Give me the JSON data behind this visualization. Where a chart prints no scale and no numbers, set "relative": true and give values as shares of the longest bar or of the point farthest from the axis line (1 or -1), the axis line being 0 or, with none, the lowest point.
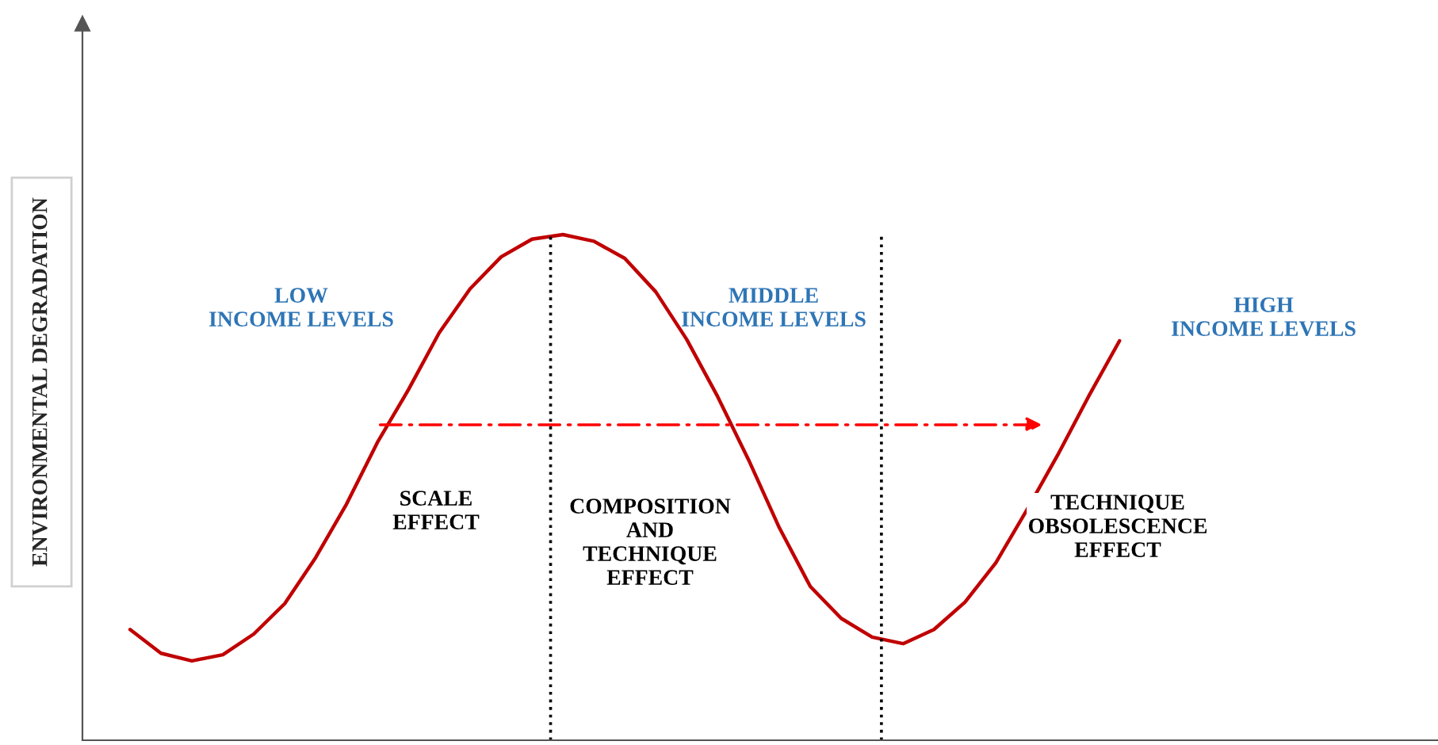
{
  "chart_data": {
    "type": "line",
    "relative": true,
    "legend": false,
    "marker": "none",
    "line_style": "solid",
    "ylabel": "ENVIRONMENTAL DEGRADATION",
    "categories": [
      null,
      null,
      null,
      null,
      null,
      null,
      null,
      null,
      null,
      null,
      null,
      null,
      null,
      null,
      null,
      null,
      null,
      null,
      null,
      null,
      null,
      null,
      null,
      null,
      null,
      null,
      null,
      null,
      null,
      null,
      null,
      null,
      null
    ],
    "series": [
      {
        "color": "#c00000",
        "values": [
          0.219,
          0.172,
          0.157,
          0.169,
          0.21,
          0.27,
          0.361,
          0.467,
          0.589,
          0.693,
          0.806,
          0.893,
          0.956,
          0.991,
          1.0,
          0.987,
          0.953,
          0.887,
          0.793,
          0.68,
          0.555,
          0.42,
          0.304,
          0.241,
          0.204,
          0.191,
          0.219,
          0.273,
          0.351,
          0.455,
          0.564,
          0.68,
          0.79
        ]
      }
    ],
    "annotations": [
      "LOW\nINCOME LEVELS",
      "MIDDLE\nINCOME LEVELS",
      "HIGH\nINCOME LEVELS",
      "SCALE\nEFFECT",
      "COMPOSITION\nAND\nTECHNIQUE\nEFFECT",
      "TECHNIQUE\nOBSOLESCENCE\nEFFECT"
    ]
  }
}
